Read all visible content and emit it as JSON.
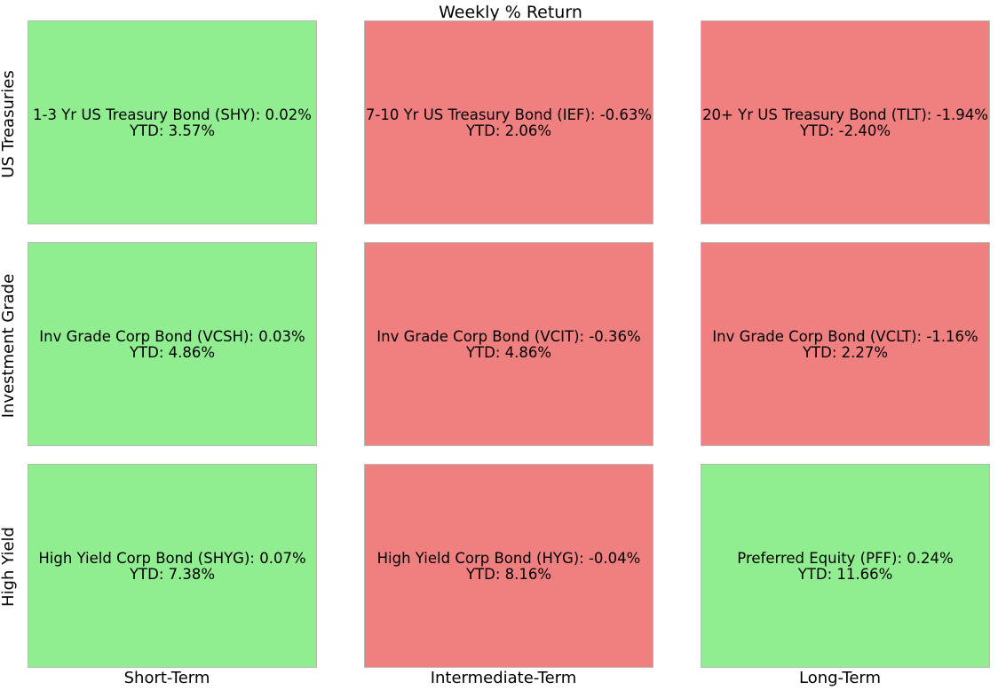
{
  "colors": {
    "positive": "#90ee90",
    "negative": "#f08080",
    "border": "#b8b8b8",
    "text": "#000000"
  },
  "chart_data": {
    "type": "heatmap",
    "title": "Weekly % Return",
    "columns": [
      "Short-Term",
      "Intermediate-Term",
      "Long-Term"
    ],
    "rows": [
      "US Treasuries",
      "Investment Grade",
      "High Yield"
    ],
    "cells": [
      [
        {
          "name": "1-3 Yr US Treasury Bond (SHY)",
          "weekly": 0.02,
          "ytd": 3.57,
          "weekly_text": "1-3 Yr US Treasury Bond (SHY): 0.02%",
          "ytd_text": "YTD: 3.57%"
        },
        {
          "name": "7-10 Yr US Treasury Bond (IEF)",
          "weekly": -0.63,
          "ytd": 2.06,
          "weekly_text": "7-10 Yr US Treasury Bond (IEF): -0.63%",
          "ytd_text": "YTD: 2.06%"
        },
        {
          "name": "20+ Yr US Treasury Bond (TLT)",
          "weekly": -1.94,
          "ytd": -2.4,
          "weekly_text": "20+ Yr US Treasury Bond (TLT): -1.94%",
          "ytd_text": "YTD: -2.40%"
        }
      ],
      [
        {
          "name": "Inv Grade Corp Bond (VCSH)",
          "weekly": 0.03,
          "ytd": 4.86,
          "weekly_text": "Inv Grade Corp Bond (VCSH): 0.03%",
          "ytd_text": "YTD: 4.86%"
        },
        {
          "name": "Inv Grade Corp Bond (VCIT)",
          "weekly": -0.36,
          "ytd": 4.86,
          "weekly_text": "Inv Grade Corp Bond (VCIT): -0.36%",
          "ytd_text": "YTD: 4.86%"
        },
        {
          "name": "Inv Grade Corp Bond (VCLT)",
          "weekly": -1.16,
          "ytd": 2.27,
          "weekly_text": "Inv Grade Corp Bond (VCLT): -1.16%",
          "ytd_text": "YTD: 2.27%"
        }
      ],
      [
        {
          "name": "High Yield Corp Bond (SHYG)",
          "weekly": 0.07,
          "ytd": 7.38,
          "weekly_text": "High Yield Corp Bond (SHYG): 0.07%",
          "ytd_text": "YTD: 7.38%"
        },
        {
          "name": "High Yield Corp Bond (HYG)",
          "weekly": -0.04,
          "ytd": 8.16,
          "weekly_text": "High Yield Corp Bond (HYG): -0.04%",
          "ytd_text": "YTD: 8.16%"
        },
        {
          "name": "Preferred Equity (PFF)",
          "weekly": 0.24,
          "ytd": 11.66,
          "weekly_text": "Preferred Equity (PFF): 0.24%",
          "ytd_text": "YTD: 11.66%"
        }
      ]
    ]
  }
}
